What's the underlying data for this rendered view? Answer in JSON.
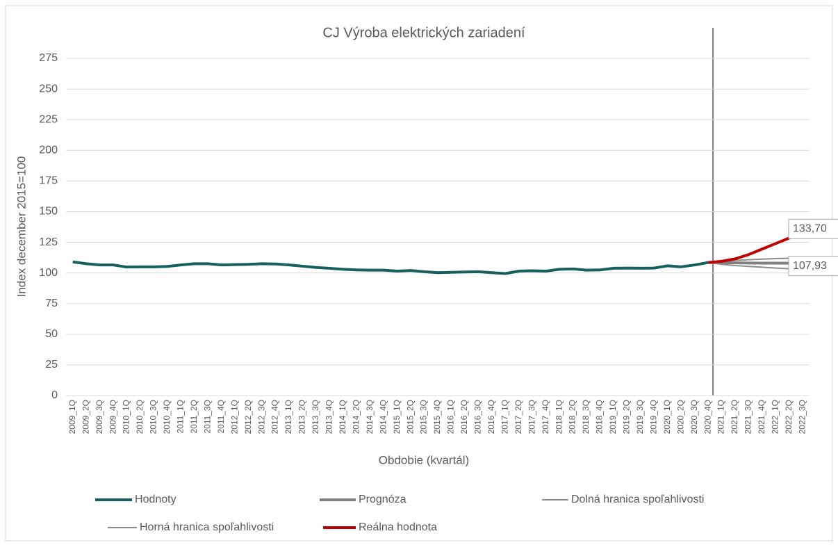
{
  "chart_data": {
    "type": "line",
    "title": "CJ Výroba elektrických zariadení",
    "xlabel": "Obdobie (kvartál)",
    "ylabel": "Index december 2015=100",
    "categories": [
      "2009_1Q",
      "2009_2Q",
      "2009_3Q",
      "2009_4Q",
      "2010_1Q",
      "2010_2Q",
      "2010_3Q",
      "2010_4Q",
      "2011_1Q",
      "2011_2Q",
      "2011_3Q",
      "2011_4Q",
      "2012_1Q",
      "2012_2Q",
      "2012_3Q",
      "2012_4Q",
      "2013_1Q",
      "2013_2Q",
      "2013_3Q",
      "2013_4Q",
      "2014_1Q",
      "2014_2Q",
      "2014_3Q",
      "2014_4Q",
      "2015_1Q",
      "2015_2Q",
      "2015_3Q",
      "2015_4Q",
      "2016_1Q",
      "2016_2Q",
      "2016_3Q",
      "2016_4Q",
      "2017_1Q",
      "2017_2Q",
      "2017_3Q",
      "2017_4Q",
      "2018_1Q",
      "2018_2Q",
      "2018_3Q",
      "2018_4Q",
      "2019_1Q",
      "2019_2Q",
      "2019_3Q",
      "2019_4Q",
      "2020_1Q",
      "2020_2Q",
      "2020_3Q",
      "2020_4Q",
      "2021_1Q",
      "2021_2Q",
      "2021_3Q",
      "2021_4Q",
      "2022_1Q",
      "2022_2Q",
      "2022_3Q"
    ],
    "series": [
      {
        "name": "Hodnoty",
        "color": "#17605f",
        "width": 4,
        "values": [
          109,
          107.5,
          106.5,
          106.5,
          104.8,
          105,
          105,
          105.3,
          106.5,
          107.5,
          107.5,
          106.5,
          106.8,
          107,
          107.5,
          107.3,
          106.5,
          105.5,
          104.5,
          103.8,
          103,
          102.5,
          102.3,
          102.3,
          101.5,
          102,
          101,
          100.2,
          100.5,
          100.8,
          101,
          100.2,
          99.5,
          101.5,
          101.8,
          101.5,
          103,
          103.3,
          102.3,
          102.5,
          103.8,
          104,
          103.8,
          104,
          105.8,
          105,
          106.5,
          108.5,
          null,
          null,
          null,
          null,
          null,
          null,
          null
        ]
      },
      {
        "name": "Prognóza",
        "color": "#808080",
        "width": 4,
        "values": [
          null,
          null,
          null,
          null,
          null,
          null,
          null,
          null,
          null,
          null,
          null,
          null,
          null,
          null,
          null,
          null,
          null,
          null,
          null,
          null,
          null,
          null,
          null,
          null,
          null,
          null,
          null,
          null,
          null,
          null,
          null,
          null,
          null,
          null,
          null,
          null,
          null,
          null,
          null,
          null,
          null,
          null,
          null,
          null,
          null,
          null,
          null,
          108.5,
          108.3,
          108.2,
          108.1,
          108,
          108,
          107.95,
          107.93
        ],
        "value_labels": [
          null,
          null,
          null,
          null,
          null,
          null,
          null,
          null,
          null,
          null,
          null,
          null,
          null,
          null,
          null,
          null,
          null,
          null,
          null,
          null,
          null,
          null,
          null,
          null,
          null,
          null,
          null,
          null,
          null,
          null,
          null,
          null,
          null,
          null,
          null,
          null,
          null,
          null,
          null,
          null,
          null,
          null,
          null,
          null,
          null,
          null,
          null,
          null,
          null,
          null,
          null,
          null,
          null,
          null,
          "107,93"
        ]
      },
      {
        "name": "Dolná hranica spoľahlivosti",
        "color": "#8c8c8c",
        "width": 2,
        "values": [
          null,
          null,
          null,
          null,
          null,
          null,
          null,
          null,
          null,
          null,
          null,
          null,
          null,
          null,
          null,
          null,
          null,
          null,
          null,
          null,
          null,
          null,
          null,
          null,
          null,
          null,
          null,
          null,
          null,
          null,
          null,
          null,
          null,
          null,
          null,
          null,
          null,
          null,
          null,
          null,
          null,
          null,
          null,
          null,
          null,
          null,
          null,
          108.5,
          107,
          106,
          105.3,
          104.7,
          104,
          103.5,
          103
        ]
      },
      {
        "name": "Horná hranica spoľahlivosti",
        "color": "#8c8c8c",
        "width": 2,
        "values": [
          null,
          null,
          null,
          null,
          null,
          null,
          null,
          null,
          null,
          null,
          null,
          null,
          null,
          null,
          null,
          null,
          null,
          null,
          null,
          null,
          null,
          null,
          null,
          null,
          null,
          null,
          null,
          null,
          null,
          null,
          null,
          null,
          null,
          null,
          null,
          null,
          null,
          null,
          null,
          null,
          null,
          null,
          null,
          null,
          null,
          null,
          null,
          108.5,
          109.5,
          110.2,
          110.8,
          111.3,
          111.7,
          112,
          112.3
        ]
      },
      {
        "name": "Reálna hodnota",
        "color": "#c00000",
        "width": 4,
        "values": [
          null,
          null,
          null,
          null,
          null,
          null,
          null,
          null,
          null,
          null,
          null,
          null,
          null,
          null,
          null,
          null,
          null,
          null,
          null,
          null,
          null,
          null,
          null,
          null,
          null,
          null,
          null,
          null,
          null,
          null,
          null,
          null,
          null,
          null,
          null,
          null,
          null,
          null,
          null,
          null,
          null,
          null,
          null,
          null,
          null,
          null,
          null,
          108.5,
          109.5,
          111.5,
          115,
          119.5,
          124,
          128.5,
          133.7
        ],
        "value_labels": [
          null,
          null,
          null,
          null,
          null,
          null,
          null,
          null,
          null,
          null,
          null,
          null,
          null,
          null,
          null,
          null,
          null,
          null,
          null,
          null,
          null,
          null,
          null,
          null,
          null,
          null,
          null,
          null,
          null,
          null,
          null,
          null,
          null,
          null,
          null,
          null,
          null,
          null,
          null,
          null,
          null,
          null,
          null,
          null,
          null,
          null,
          null,
          null,
          null,
          null,
          null,
          null,
          null,
          null,
          "133,70"
        ]
      }
    ],
    "ylim": [
      0,
      275
    ],
    "yticks": [
      0,
      25,
      50,
      75,
      100,
      125,
      150,
      175,
      200,
      225,
      250,
      275
    ],
    "grid": true,
    "legend": "bottom"
  }
}
